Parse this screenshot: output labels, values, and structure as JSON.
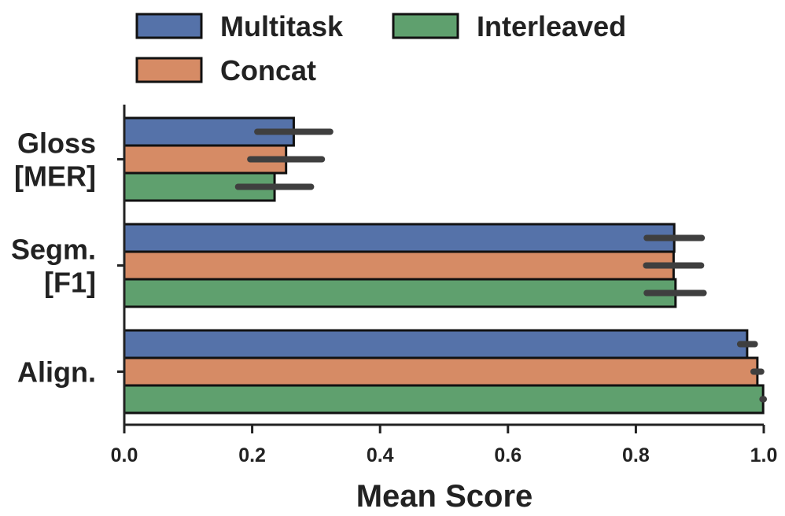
{
  "chart_data": {
    "type": "bar",
    "orientation": "horizontal",
    "title": "",
    "xlabel": "Mean Score",
    "ylabel": "",
    "xlim": [
      0.0,
      1.0
    ],
    "xticks": [
      "0.0",
      "0.2",
      "0.4",
      "0.6",
      "0.8",
      "1.0"
    ],
    "grid": false,
    "legend_position": "top",
    "categories": [
      {
        "lines": [
          "Gloss",
          "[MER]"
        ]
      },
      {
        "lines": [
          "Segm.",
          "[F1]"
        ]
      },
      {
        "lines": [
          "Align."
        ]
      }
    ],
    "series": [
      {
        "name": "Multitask",
        "color": "#5572a9",
        "values": [
          0.265,
          0.86,
          0.974
        ],
        "err": [
          [
            0.208,
            0.322
          ],
          [
            0.817,
            0.903
          ],
          [
            0.963,
            0.986
          ]
        ]
      },
      {
        "name": "Concat",
        "color": "#d68b65",
        "values": [
          0.253,
          0.859,
          0.99
        ],
        "err": [
          [
            0.197,
            0.309
          ],
          [
            0.816,
            0.902
          ],
          [
            0.984,
            0.996
          ]
        ]
      },
      {
        "name": "Interleaved",
        "color": "#5fa06e",
        "values": [
          0.235,
          0.862,
          0.999
        ],
        "err": [
          [
            0.178,
            0.292
          ],
          [
            0.817,
            0.906
          ],
          [
            0.998,
            1.0
          ]
        ]
      }
    ]
  }
}
